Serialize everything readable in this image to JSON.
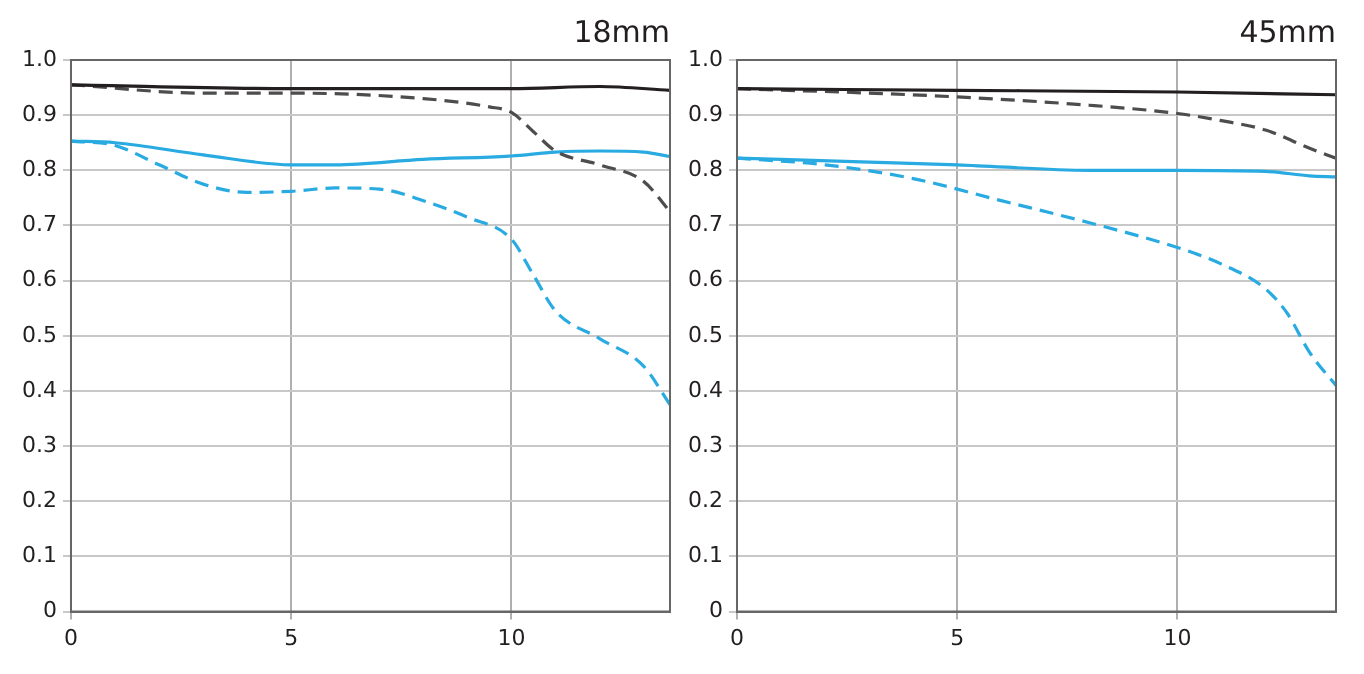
{
  "chart_data": [
    {
      "type": "line",
      "title": "18mm",
      "xlim": [
        0,
        13.6
      ],
      "xticks": [
        0,
        5,
        10
      ],
      "ylim": [
        0,
        1
      ],
      "yticks": [
        0,
        0.1,
        0.2,
        0.3,
        0.4,
        0.5,
        0.6,
        0.7,
        0.8,
        0.9,
        {
          "value": 1,
          "label": "1.0"
        }
      ],
      "grid": true,
      "legend": false,
      "marker": "none",
      "series": [
        {
          "color": "#231f20",
          "line_style": "solid",
          "x": [
            0,
            5,
            10,
            12,
            13.6
          ],
          "values": [
            0.955,
            0.948,
            0.948,
            0.952,
            0.945
          ]
        },
        {
          "color": "#4d4d4d",
          "line_style": "dashed",
          "x": [
            0,
            3,
            5,
            8,
            9.5,
            10,
            10.5,
            11,
            12,
            13,
            13.6
          ],
          "values": [
            0.955,
            0.94,
            0.94,
            0.93,
            0.915,
            0.905,
            0.87,
            0.835,
            0.81,
            0.78,
            0.725
          ]
        },
        {
          "color": "#29abe2",
          "line_style": "solid",
          "x": [
            0,
            1,
            3,
            5,
            6,
            8,
            10,
            11,
            12,
            13,
            13.6
          ],
          "values": [
            0.853,
            0.85,
            0.828,
            0.81,
            0.81,
            0.82,
            0.826,
            0.833,
            0.835,
            0.833,
            0.825
          ]
        },
        {
          "color": "#29abe2",
          "line_style": "dashed",
          "x": [
            0,
            1,
            2,
            3,
            4,
            5,
            6,
            7,
            8,
            9,
            10,
            10.5,
            11,
            12,
            13,
            13.6
          ],
          "values": [
            0.853,
            0.845,
            0.81,
            0.775,
            0.76,
            0.762,
            0.768,
            0.766,
            0.745,
            0.715,
            0.675,
            0.61,
            0.545,
            0.495,
            0.445,
            0.375
          ]
        }
      ]
    },
    {
      "type": "line",
      "title": "45mm",
      "xlim": [
        0,
        13.6
      ],
      "xticks": [
        0,
        5,
        10
      ],
      "ylim": [
        0,
        1
      ],
      "yticks": [
        0,
        0.1,
        0.2,
        0.3,
        0.4,
        0.5,
        0.6,
        0.7,
        0.8,
        0.9,
        {
          "value": 1,
          "label": "1.0"
        }
      ],
      "grid": true,
      "legend": false,
      "marker": "none",
      "series": [
        {
          "color": "#231f20",
          "line_style": "solid",
          "x": [
            0,
            5,
            10,
            13.6
          ],
          "values": [
            0.948,
            0.945,
            0.942,
            0.937
          ]
        },
        {
          "color": "#4d4d4d",
          "line_style": "dashed",
          "x": [
            0,
            3,
            5,
            8,
            10,
            11,
            12,
            13,
            13.6
          ],
          "values": [
            0.948,
            0.94,
            0.933,
            0.918,
            0.903,
            0.89,
            0.873,
            0.84,
            0.822
          ]
        },
        {
          "color": "#29abe2",
          "line_style": "solid",
          "x": [
            0,
            3,
            5,
            8,
            10,
            12,
            13,
            13.6
          ],
          "values": [
            0.822,
            0.815,
            0.81,
            0.8,
            0.8,
            0.798,
            0.79,
            0.788
          ]
        },
        {
          "color": "#29abe2",
          "line_style": "dashed",
          "x": [
            0,
            2,
            4,
            6,
            8,
            10,
            11,
            12,
            12.5,
            13,
            13.6
          ],
          "values": [
            0.822,
            0.81,
            0.785,
            0.745,
            0.705,
            0.66,
            0.63,
            0.585,
            0.54,
            0.47,
            0.41
          ]
        }
      ]
    }
  ]
}
